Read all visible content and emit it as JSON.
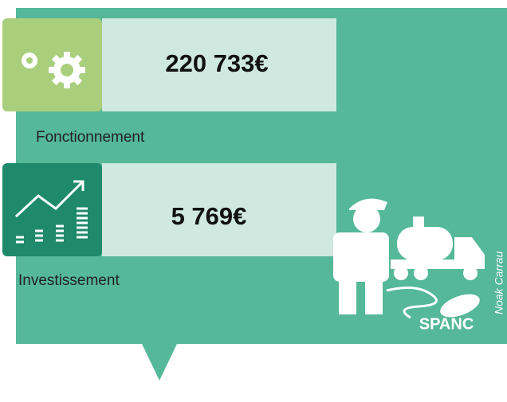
{
  "cards": [
    {
      "amount": "220 733€",
      "label": "Fonctionnement"
    },
    {
      "amount": "5 769€",
      "label": "Investissement"
    }
  ],
  "badge": "SPANC",
  "credit": "Noak Carrau"
}
